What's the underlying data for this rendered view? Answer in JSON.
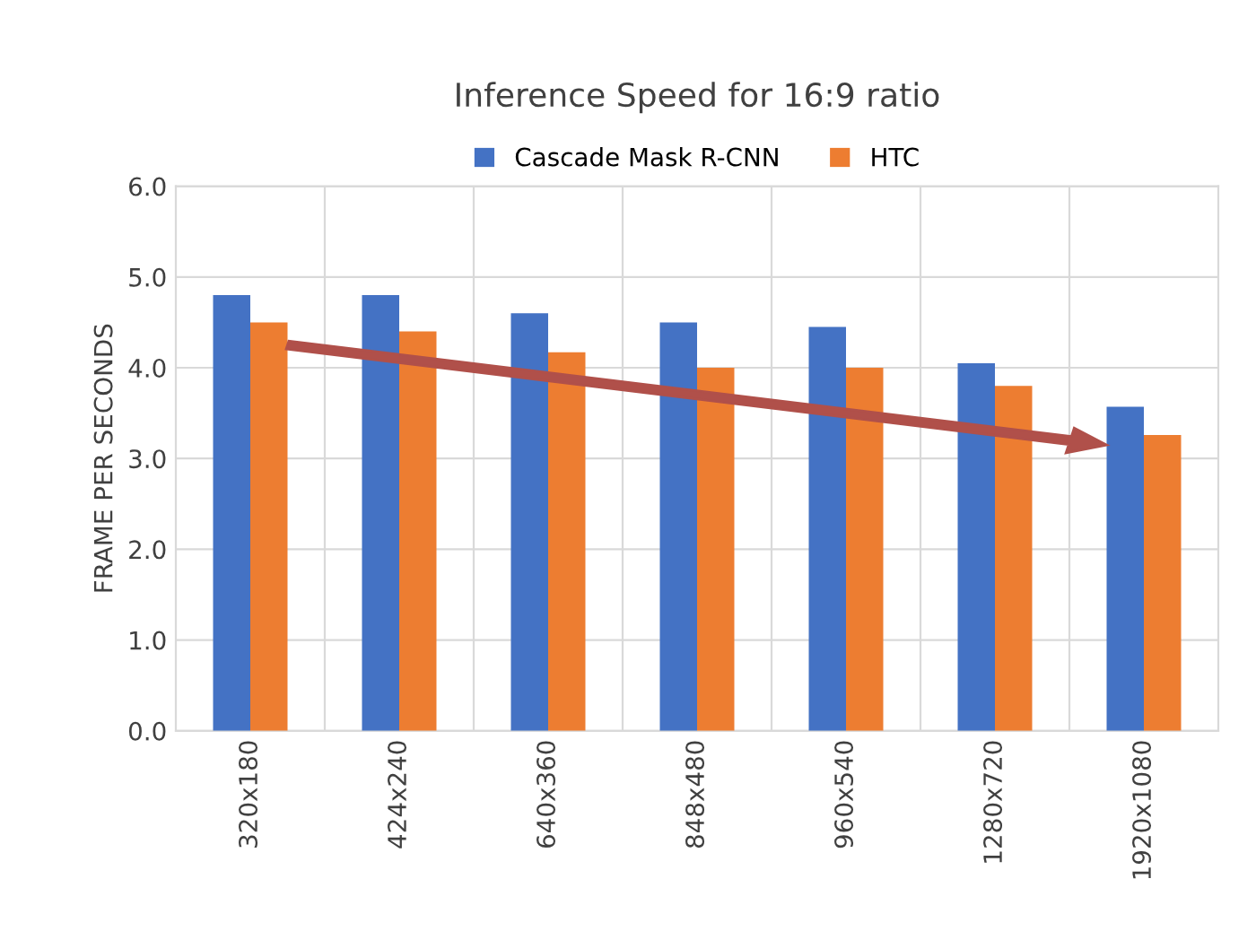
{
  "chart_data": {
    "type": "bar",
    "title": "Inference Speed for 16:9 ratio",
    "ylabel": "FRAME PER SECONDS",
    "categories": [
      "320x180",
      "424x240",
      "640x360",
      "848x480",
      "960x540",
      "1280x720",
      "1920x1080"
    ],
    "series": [
      {
        "name": "Cascade Mask R-CNN",
        "color": "#4472c4",
        "values": [
          4.8,
          4.8,
          4.6,
          4.5,
          4.45,
          4.05,
          3.57
        ]
      },
      {
        "name": "HTC",
        "color": "#ed7d31",
        "values": [
          4.5,
          4.4,
          4.17,
          4.0,
          4.0,
          3.8,
          3.26
        ]
      }
    ],
    "ylim": [
      0,
      6
    ],
    "yticks": [
      {
        "value": 0,
        "label": "0.0"
      },
      {
        "value": 1,
        "label": "1.0"
      },
      {
        "value": 2,
        "label": "2.0"
      },
      {
        "value": 3,
        "label": "3.0"
      },
      {
        "value": 4,
        "label": "4.0"
      },
      {
        "value": 5,
        "label": "5.0"
      },
      {
        "value": 6,
        "label": "6.0"
      }
    ],
    "grid": true,
    "legend": "top"
  }
}
